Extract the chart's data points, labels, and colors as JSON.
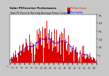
{
  "title1": "Solar PV/Inverter Performance  Total PV Panel & Running Average Power Output",
  "background_color": "#c8c8c8",
  "plot_bg_color": "#ffffff",
  "bar_color": "#dd0000",
  "avg_line_color": "#0000ee",
  "grid_color": "#aaaaaa",
  "text_color": "#000000",
  "ylim": [
    0,
    3000
  ],
  "ytick_vals": [
    500,
    1000,
    1500,
    2000,
    2500,
    3000
  ],
  "ytick_labels": [
    "5.",
    "1k.",
    "1.5",
    "2k.",
    "2.5",
    "3k."
  ],
  "n_points": 290,
  "avg_window": 30
}
